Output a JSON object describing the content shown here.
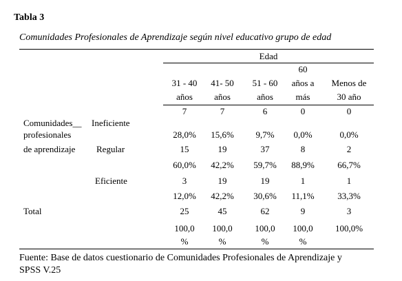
{
  "title": "Tabla 3",
  "subtitle": "Comunidades Profesionales de Aprendizaje según nivel educativo grupo de edad",
  "table": {
    "group_header": "Edad",
    "columns": [
      [
        "31 - 40",
        "años"
      ],
      [
        "41- 50",
        "años"
      ],
      [
        "51 - 60",
        "años"
      ],
      [
        "60",
        "años a",
        "más"
      ],
      [
        "Menos de",
        "30 año"
      ]
    ],
    "row_group": [
      "Comunidades__",
      "profesionales",
      "de aprendizaje"
    ],
    "rows": [
      {
        "label": "Ineficiente",
        "counts": [
          7,
          7,
          6,
          0,
          0
        ],
        "percents": [
          "28,0%",
          "15,6%",
          "9,7%",
          "0,0%",
          "0,0%"
        ]
      },
      {
        "label": "Regular",
        "counts": [
          15,
          19,
          37,
          8,
          2
        ],
        "percents": [
          "60,0%",
          "42,2%",
          "59,7%",
          "88,9%",
          "66,7%"
        ]
      },
      {
        "label": "Eficiente",
        "counts": [
          3,
          19,
          19,
          1,
          1
        ],
        "percents": [
          "12,0%",
          "42,2%",
          "30,6%",
          "11,1%",
          "33,3%"
        ]
      },
      {
        "label": "Total",
        "counts": [
          25,
          45,
          62,
          9,
          3
        ],
        "percents": [
          [
            "100,0",
            "%"
          ],
          [
            "100,0",
            "%"
          ],
          [
            "100,0",
            "%"
          ],
          [
            "100,0",
            "%"
          ],
          [
            "100,0%"
          ]
        ]
      }
    ]
  },
  "footer": [
    "Fuente: Base de datos cuestionario de Comunidades Profesionales de Aprendizaje y",
    "SPSS V.25"
  ]
}
